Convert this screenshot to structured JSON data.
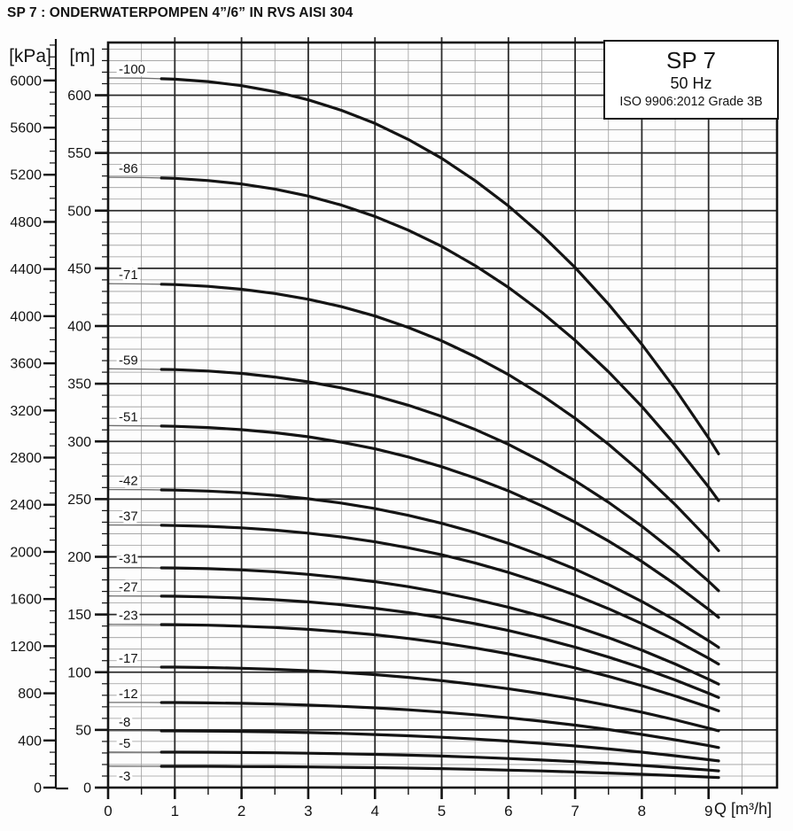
{
  "title": "SP 7 : ONDERWATERPOMPEN 4”/6” IN RVS AISI 304",
  "legend": {
    "model": "SP 7",
    "frequency": "50 Hz",
    "standard": "ISO 9906:2012 Grade 3B"
  },
  "axes": {
    "pressure": {
      "unit": "[kPa]",
      "tick_values": [
        0,
        400,
        800,
        1200,
        1600,
        2000,
        2400,
        2800,
        3200,
        3600,
        4000,
        4400,
        4800,
        5200,
        5600,
        6000
      ],
      "minor_step": 100,
      "minor_max": 6300
    },
    "head": {
      "unit": "[m]",
      "tick_values": [
        0,
        50,
        100,
        150,
        200,
        250,
        300,
        350,
        400,
        450,
        500,
        550,
        600
      ],
      "minor_step": 10,
      "minor_max": 640
    },
    "flow": {
      "unit": "Q [m³/h]",
      "tick_values": [
        0,
        1,
        2,
        3,
        4,
        5,
        6,
        7,
        8,
        9
      ],
      "minor_step": 0.5,
      "minor_max": 9.5
    }
  },
  "colors": {
    "curve": "#141414",
    "curve_thin": "#6e6e6e",
    "grid_minor": "#9c9c9c",
    "grid_major": "#2b2b2b",
    "frame": "#141414",
    "text": "#141414",
    "label_halo": "#ffffff"
  },
  "chart_data": {
    "type": "line",
    "title": "SP 7 submersible pump performance curves (head vs flow)",
    "xlabel": "Q [m³/h]",
    "ylabel_left": "[kPa]",
    "ylabel_right": "[m]",
    "xlim": [
      0,
      10.03
    ],
    "ylim_m": [
      0,
      646
    ],
    "ylim_kpa": [
      0,
      6322
    ],
    "grid": true,
    "x": [
      0,
      0.5,
      0.8,
      1,
      1.5,
      2,
      2.5,
      3,
      3.5,
      4,
      4.5,
      5,
      5.5,
      6,
      6.5,
      7,
      7.5,
      8,
      8.5,
      9,
      9.15
    ],
    "series": [
      {
        "label": "-100",
        "stages": 100,
        "heads_m": [
          615.0,
          614.8,
          614.3,
          613.9,
          611.8,
          608.3,
          603.1,
          596.0,
          586.9,
          575.6,
          561.7,
          545.3,
          526.1,
          504.1,
          478.9,
          450.7,
          419.0,
          384.1,
          345.4,
          303.0,
          289.2
        ]
      },
      {
        "label": "-86",
        "stages": 86,
        "heads_m": [
          528.9,
          528.7,
          528.3,
          528.0,
          526.1,
          523.1,
          518.7,
          512.6,
          504.7,
          495.0,
          483.1,
          469.0,
          452.4,
          433.5,
          411.9,
          387.6,
          360.3,
          330.3,
          297.0,
          260.6,
          248.7
        ]
      },
      {
        "label": "-71",
        "stages": 71,
        "heads_m": [
          436.7,
          436.5,
          436.2,
          435.9,
          434.4,
          431.9,
          428.2,
          423.2,
          416.7,
          408.7,
          398.8,
          387.2,
          373.5,
          357.9,
          340.0,
          320.0,
          297.5,
          272.7,
          245.2,
          215.1,
          205.3
        ]
      },
      {
        "label": "-59",
        "stages": 59,
        "heads_m": [
          362.9,
          362.7,
          362.4,
          362.2,
          361.0,
          358.9,
          355.8,
          351.6,
          346.3,
          339.6,
          331.4,
          321.7,
          310.4,
          297.4,
          282.6,
          265.9,
          247.2,
          226.6,
          203.8,
          178.8,
          170.6
        ]
      },
      {
        "label": "-51",
        "stages": 51,
        "heads_m": [
          313.7,
          313.5,
          313.3,
          313.1,
          312.0,
          310.2,
          307.6,
          304.0,
          299.3,
          293.6,
          286.5,
          278.1,
          268.3,
          257.1,
          244.2,
          229.9,
          213.7,
          195.9,
          176.2,
          154.5,
          147.5
        ]
      },
      {
        "label": "-42",
        "stages": 42,
        "heads_m": [
          258.3,
          258.2,
          258.0,
          257.8,
          257.0,
          255.5,
          253.3,
          250.3,
          246.5,
          241.8,
          235.9,
          229.0,
          221.0,
          211.7,
          201.1,
          189.3,
          176.0,
          161.3,
          145.1,
          127.3,
          121.5
        ]
      },
      {
        "label": "-37",
        "stages": 37,
        "heads_m": [
          227.6,
          227.5,
          227.3,
          227.1,
          226.4,
          225.1,
          223.1,
          220.5,
          217.2,
          213.0,
          207.8,
          201.8,
          194.7,
          186.5,
          177.2,
          166.8,
          155.0,
          142.1,
          127.8,
          112.1,
          107.0
        ]
      },
      {
        "label": "-31",
        "stages": 31,
        "heads_m": [
          190.7,
          190.6,
          190.4,
          190.3,
          189.7,
          188.6,
          187.0,
          184.8,
          181.9,
          178.4,
          174.1,
          169.0,
          163.1,
          156.3,
          148.5,
          139.7,
          129.9,
          119.1,
          107.1,
          93.9,
          89.7
        ]
      },
      {
        "label": "-27",
        "stages": 27,
        "heads_m": [
          166.1,
          166.0,
          165.9,
          165.8,
          165.2,
          164.2,
          162.8,
          160.9,
          158.5,
          155.4,
          151.7,
          147.2,
          142.0,
          136.1,
          129.3,
          121.7,
          113.1,
          103.7,
          93.3,
          81.8,
          78.1
        ]
      },
      {
        "label": "-23",
        "stages": 23,
        "heads_m": [
          141.5,
          141.4,
          141.3,
          141.2,
          140.7,
          139.9,
          138.7,
          137.1,
          135.0,
          132.4,
          129.2,
          125.4,
          121.0,
          115.9,
          110.1,
          103.7,
          96.4,
          88.3,
          79.4,
          69.7,
          66.5
        ]
      },
      {
        "label": "-17",
        "stages": 17,
        "heads_m": [
          104.6,
          104.5,
          104.4,
          104.4,
          104.0,
          103.4,
          102.5,
          101.3,
          99.8,
          97.9,
          95.5,
          92.7,
          89.4,
          85.7,
          81.4,
          76.6,
          71.2,
          65.3,
          58.7,
          51.5,
          49.2
        ]
      },
      {
        "label": "-12",
        "stages": 12,
        "heads_m": [
          73.8,
          73.8,
          73.7,
          73.7,
          73.4,
          73.0,
          72.4,
          71.5,
          70.4,
          69.1,
          67.4,
          65.4,
          63.1,
          60.5,
          57.5,
          54.1,
          50.3,
          46.1,
          41.4,
          36.4,
          34.7
        ]
      },
      {
        "label": "-8",
        "stages": 8,
        "heads_m": [
          49.2,
          49.2,
          49.1,
          49.1,
          48.9,
          48.7,
          48.2,
          47.7,
          47.0,
          46.0,
          44.9,
          43.6,
          42.1,
          40.3,
          38.3,
          36.1,
          33.5,
          30.7,
          27.6,
          24.2,
          23.1
        ]
      },
      {
        "label": "-5",
        "stages": 5,
        "heads_m": [
          30.8,
          30.7,
          30.7,
          30.7,
          30.6,
          30.4,
          30.2,
          29.8,
          29.3,
          28.8,
          28.1,
          27.3,
          26.3,
          25.2,
          23.9,
          22.5,
          21.0,
          19.2,
          17.3,
          15.2,
          14.5
        ]
      },
      {
        "label": "-3",
        "stages": 3,
        "heads_m": [
          18.5,
          18.4,
          18.4,
          18.4,
          18.4,
          18.2,
          18.1,
          17.9,
          17.6,
          17.3,
          16.9,
          16.4,
          15.8,
          15.1,
          14.4,
          13.5,
          12.6,
          11.5,
          10.4,
          9.1,
          8.7
        ]
      }
    ]
  }
}
